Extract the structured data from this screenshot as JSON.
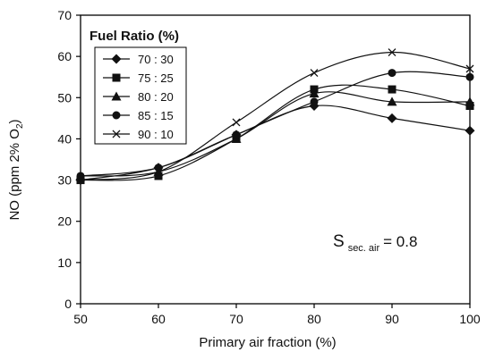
{
  "chart_data": {
    "type": "line",
    "xlabel": "Primary air fraction (%)",
    "ylabel": "NO (ppm 2% O",
    "ylabel_sub": "2",
    "ylabel_close": ")",
    "xlim": [
      50,
      100
    ],
    "ylim": [
      0,
      70
    ],
    "x_ticks": [
      50,
      60,
      70,
      80,
      90,
      100
    ],
    "y_ticks": [
      0,
      10,
      20,
      30,
      40,
      50,
      60,
      70
    ],
    "grid": false,
    "legend": {
      "title": "Fuel Ratio (%)",
      "placement": "top-left"
    },
    "annotation": {
      "main": "S",
      "sub": "sec. air",
      "rest": "= 0.8"
    },
    "x": [
      50,
      60,
      70,
      80,
      90,
      100
    ],
    "series": [
      {
        "name": "70 : 30",
        "marker": "diamond",
        "values": [
          30,
          33,
          41,
          48,
          45,
          42
        ]
      },
      {
        "name": "75 : 25",
        "marker": "square",
        "values": [
          30,
          31,
          40,
          52,
          52,
          48
        ]
      },
      {
        "name": "80 : 20",
        "marker": "triangle",
        "values": [
          31,
          32,
          40,
          51,
          49,
          49
        ]
      },
      {
        "name": "85 : 15",
        "marker": "circle",
        "values": [
          31,
          33,
          41,
          49,
          56,
          55
        ]
      },
      {
        "name": "90 : 10",
        "marker": "x",
        "values": [
          30,
          32,
          44,
          56,
          61,
          57
        ]
      }
    ]
  }
}
